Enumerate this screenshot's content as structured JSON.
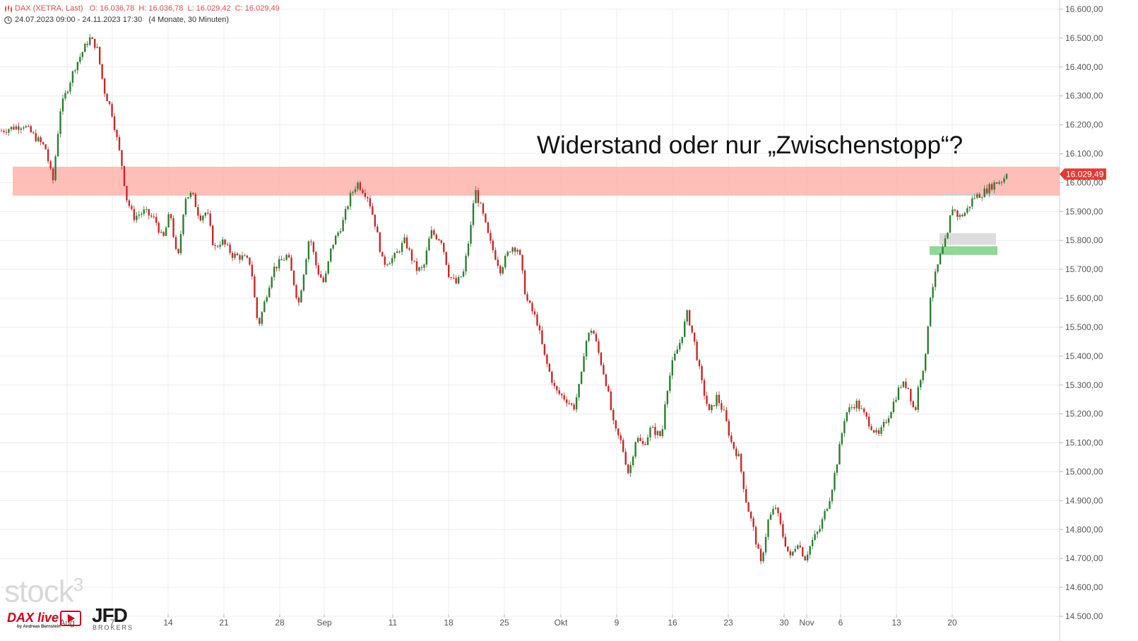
{
  "header": {
    "instrument": "DAX (XETRA, Last)",
    "ohlc": "O: 16.036,78  H: 16.036,78  L: 16.029,42  C: 16.029,49",
    "period": "24.07.2023 09:00 - 24.11.2023 17:30",
    "span": "(4 Monate, 30 Minuten)"
  },
  "headline": "Widerstand oder nur „Zwischenstopp“?",
  "branding": {
    "stock3": "stock",
    "stock3_sup": "3",
    "daxlive": "DAX live",
    "daxlive_by": "by Andreas Bernstein",
    "jfd": "JFD",
    "jfd_sub": "BROKERS"
  },
  "colors": {
    "up": "#2e7d32",
    "down": "#c62828",
    "resistance_zone": "#ffb3ab",
    "support_zone": "#8fd896",
    "gray_zone": "#dcdcdc",
    "price_tag": "#e53935",
    "grid": "#ececec"
  },
  "chart_data": {
    "type": "candlestick",
    "ylim": [
      14500,
      16600
    ],
    "yticks": [
      "14.500,00",
      "14.600,00",
      "14.700,00",
      "14.800,00",
      "14.900,00",
      "15.000,00",
      "15.100,00",
      "15.200,00",
      "15.300,00",
      "15.400,00",
      "15.500,00",
      "15.600,00",
      "15.700,00",
      "15.800,00",
      "15.900,00",
      "16.000,00",
      "16.100,00",
      "16.200,00",
      "16.300,00",
      "16.400,00",
      "16.500,00",
      "16.600,00"
    ],
    "xticks": [
      "Aug",
      "7",
      "14",
      "21",
      "28",
      "Sep",
      "11",
      "18",
      "25",
      "Okt",
      "9",
      "16",
      "23",
      "30",
      "Nov",
      "6",
      "13",
      "20"
    ],
    "last_price_label": "16.029,49",
    "last_price": 16029.49,
    "resistance_zone": [
      15955,
      16055
    ],
    "support_zone": [
      15750,
      15780
    ],
    "gray_zone": [
      15785,
      15825
    ],
    "gray_line": 15960,
    "price_path": [
      [
        0,
        16180
      ],
      [
        6,
        16200
      ],
      [
        12,
        16120
      ],
      [
        14,
        16000
      ],
      [
        16,
        16250
      ],
      [
        20,
        16400
      ],
      [
        24,
        16500
      ],
      [
        26,
        16470
      ],
      [
        28,
        16320
      ],
      [
        30,
        16250
      ],
      [
        33,
        16050
      ],
      [
        34,
        15950
      ],
      [
        36,
        15880
      ],
      [
        39,
        15900
      ],
      [
        42,
        15870
      ],
      [
        44,
        15800
      ],
      [
        46,
        15900
      ],
      [
        48,
        15720
      ],
      [
        50,
        15950
      ],
      [
        52,
        15960
      ],
      [
        54,
        15880
      ],
      [
        56,
        15900
      ],
      [
        58,
        15770
      ],
      [
        60,
        15800
      ],
      [
        63,
        15750
      ],
      [
        66,
        15740
      ],
      [
        68,
        15720
      ],
      [
        69,
        15600
      ],
      [
        70,
        15500
      ],
      [
        71,
        15550
      ],
      [
        74,
        15700
      ],
      [
        78,
        15750
      ],
      [
        81,
        15580
      ],
      [
        84,
        15820
      ],
      [
        86,
        15700
      ],
      [
        88,
        15650
      ],
      [
        90,
        15780
      ],
      [
        93,
        15860
      ],
      [
        95,
        15950
      ],
      [
        97,
        16000
      ],
      [
        100,
        15950
      ],
      [
        102,
        15850
      ],
      [
        104,
        15720
      ],
      [
        107,
        15740
      ],
      [
        110,
        15800
      ],
      [
        113,
        15700
      ],
      [
        115,
        15700
      ],
      [
        117,
        15830
      ],
      [
        120,
        15800
      ],
      [
        122,
        15680
      ],
      [
        124,
        15650
      ],
      [
        126,
        15690
      ],
      [
        128,
        15850
      ],
      [
        129,
        15980
      ],
      [
        131,
        15900
      ],
      [
        133,
        15800
      ],
      [
        136,
        15700
      ],
      [
        139,
        15780
      ],
      [
        141,
        15770
      ],
      [
        143,
        15600
      ],
      [
        146,
        15520
      ],
      [
        148,
        15400
      ],
      [
        151,
        15280
      ],
      [
        154,
        15250
      ],
      [
        156,
        15220
      ],
      [
        158,
        15320
      ],
      [
        159,
        15440
      ],
      [
        161,
        15500
      ],
      [
        163,
        15400
      ],
      [
        165,
        15300
      ],
      [
        167,
        15150
      ],
      [
        169,
        15100
      ],
      [
        171,
        14990
      ],
      [
        173,
        15120
      ],
      [
        175,
        15090
      ],
      [
        177,
        15150
      ],
      [
        180,
        15120
      ],
      [
        181,
        15260
      ],
      [
        183,
        15380
      ],
      [
        185,
        15450
      ],
      [
        187,
        15550
      ],
      [
        189,
        15440
      ],
      [
        191,
        15300
      ],
      [
        193,
        15200
      ],
      [
        195,
        15260
      ],
      [
        197,
        15200
      ],
      [
        199,
        15100
      ],
      [
        201,
        15050
      ],
      [
        203,
        14900
      ],
      [
        205,
        14800
      ],
      [
        207,
        14680
      ],
      [
        209,
        14830
      ],
      [
        211,
        14880
      ],
      [
        213,
        14780
      ],
      [
        215,
        14700
      ],
      [
        217,
        14760
      ],
      [
        219,
        14700
      ],
      [
        221,
        14760
      ],
      [
        223,
        14800
      ],
      [
        226,
        14920
      ],
      [
        228,
        15050
      ],
      [
        230,
        15200
      ],
      [
        233,
        15240
      ],
      [
        236,
        15180
      ],
      [
        239,
        15120
      ],
      [
        242,
        15200
      ],
      [
        245,
        15300
      ],
      [
        247,
        15300
      ],
      [
        249,
        15200
      ],
      [
        250,
        15300
      ],
      [
        252,
        15400
      ],
      [
        253,
        15600
      ],
      [
        255,
        15700
      ],
      [
        256,
        15750
      ],
      [
        258,
        15820
      ],
      [
        259,
        15920
      ],
      [
        261,
        15880
      ],
      [
        263,
        15900
      ],
      [
        265,
        15950
      ],
      [
        267,
        15960
      ],
      [
        269,
        15980
      ],
      [
        271,
        16000
      ],
      [
        273,
        16010
      ],
      [
        274,
        16029.49
      ]
    ]
  }
}
